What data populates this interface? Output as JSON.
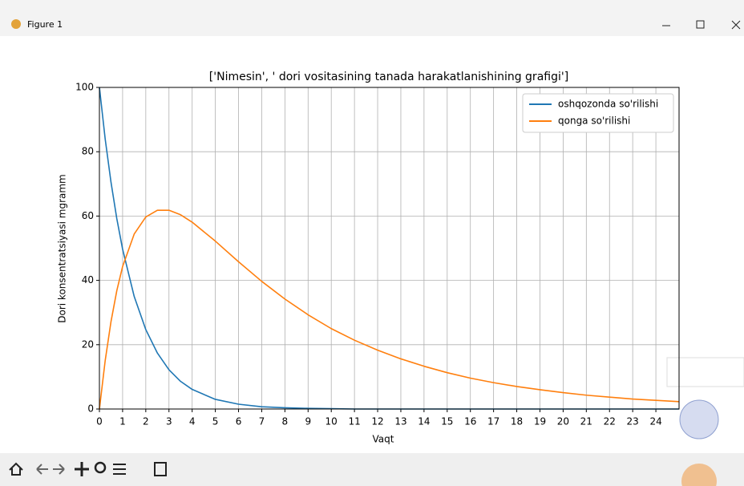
{
  "window": {
    "title": "Figure 1"
  },
  "chart_data": {
    "type": "line",
    "title": "['Nimesin', ' dori vositasining tanada harakatlanishining grafigi']",
    "x_label": "Vaqt",
    "y_label": "Dori konsentratsiyasi mgramm",
    "x": [
      0,
      0.25,
      0.5,
      0.75,
      1,
      1.5,
      2,
      2.5,
      3,
      3.5,
      4,
      5,
      6,
      7,
      8,
      9,
      10,
      11,
      12,
      13,
      14,
      15,
      16,
      17,
      18,
      19,
      20,
      21,
      22,
      23,
      24,
      25
    ],
    "series": [
      {
        "name": "oshqozonda so'rilishi",
        "color": "#1f77b4",
        "values": [
          100,
          83.9,
          70.5,
          59.2,
          49.7,
          35.0,
          24.7,
          17.4,
          12.2,
          8.6,
          6.1,
          3.0,
          1.5,
          0.7,
          0.4,
          0.2,
          0.1,
          0,
          0,
          0,
          0,
          0,
          0,
          0,
          0,
          0,
          0,
          0,
          0,
          0,
          0,
          0
        ]
      },
      {
        "name": "qonga so'rilishi",
        "color": "#ff7f0e",
        "values": [
          0,
          15.1,
          27.2,
          36.8,
          44.3,
          54.4,
          59.7,
          61.8,
          61.8,
          60.4,
          58.1,
          52.2,
          45.8,
          39.7,
          34.2,
          29.3,
          25.0,
          21.4,
          18.3,
          15.6,
          13.3,
          11.3,
          9.6,
          8.2,
          7.0,
          6.0,
          5.1,
          4.3,
          3.7,
          3.1,
          2.7,
          2.3
        ]
      }
    ],
    "xlim": [
      0,
      25
    ],
    "ylim": [
      0,
      100
    ],
    "xticks": [
      0,
      1,
      2,
      3,
      4,
      5,
      6,
      7,
      8,
      9,
      10,
      11,
      12,
      13,
      14,
      15,
      16,
      17,
      18,
      19,
      20,
      21,
      22,
      23,
      24
    ],
    "yticks": [
      0,
      20,
      40,
      60,
      80,
      100
    ],
    "grid": true,
    "legend": "upper right"
  }
}
